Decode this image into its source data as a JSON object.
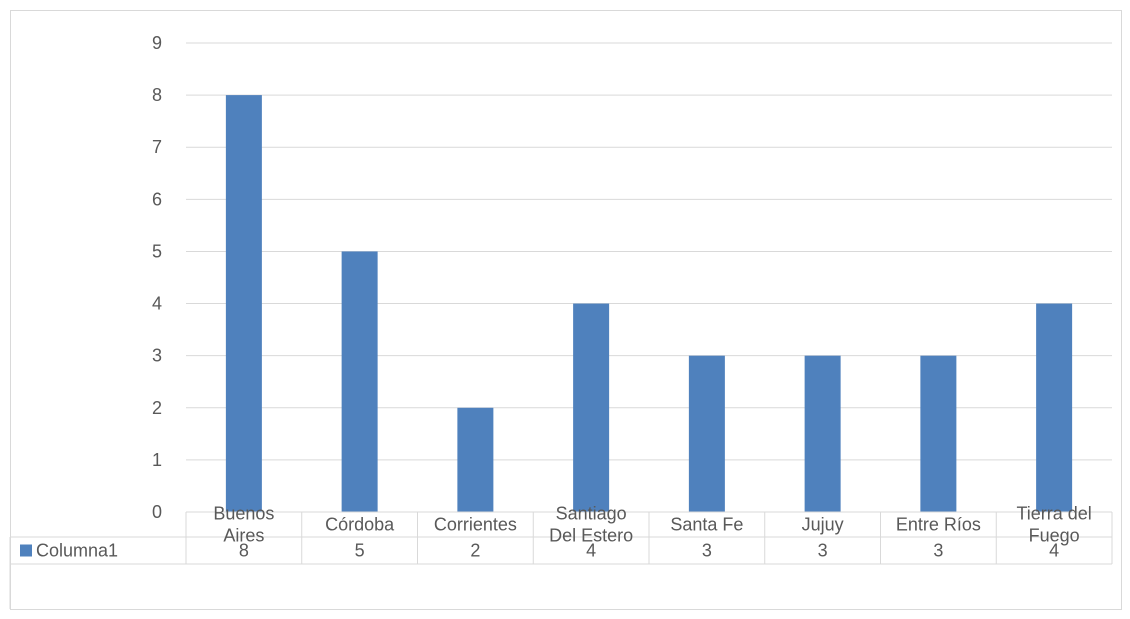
{
  "chart_data": {
    "type": "bar",
    "categories": [
      [
        "Buenos",
        "Aires"
      ],
      [
        "Córdoba"
      ],
      [
        "Corrientes"
      ],
      [
        "Santiago",
        "Del Estero"
      ],
      [
        "Santa Fe"
      ],
      [
        "Jujuy"
      ],
      [
        "Entre Ríos"
      ],
      [
        "Tierra del",
        "Fuego"
      ]
    ],
    "series": [
      {
        "name": "Columna1",
        "values": [
          8,
          5,
          2,
          4,
          3,
          3,
          3,
          4
        ],
        "color": "#4f81bd"
      }
    ],
    "value_labels": [
      "8",
      "5",
      "2",
      "4",
      "3",
      "3",
      "3",
      "4"
    ],
    "ylim": [
      0,
      9
    ],
    "y_ticks": [
      "0",
      "1",
      "2",
      "3",
      "4",
      "5",
      "6",
      "7",
      "8",
      "9"
    ],
    "grid": true,
    "data_table": true,
    "colors": {
      "grid": "#d9d9d9",
      "text": "#595959"
    }
  }
}
